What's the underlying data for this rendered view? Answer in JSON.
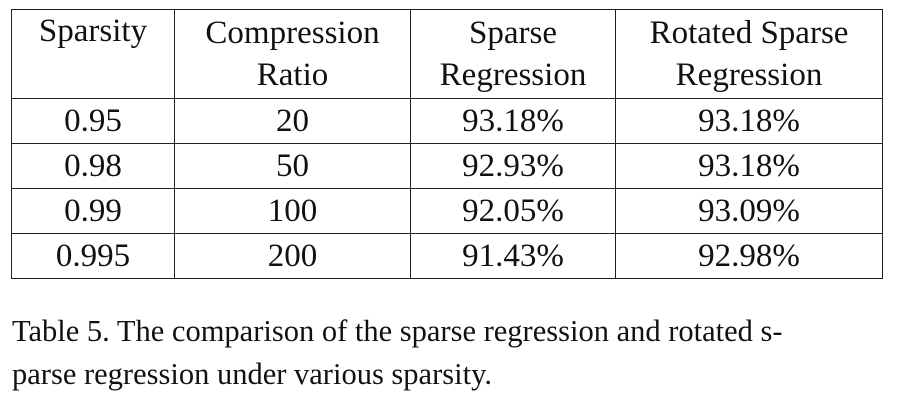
{
  "table": {
    "headers": [
      [
        "Sparsity"
      ],
      [
        "Compression",
        "Ratio"
      ],
      [
        "Sparse",
        "Regression"
      ],
      [
        "Rotated Sparse",
        "Regression"
      ]
    ],
    "rows": [
      [
        "0.95",
        "20",
        "93.18%",
        "93.18%"
      ],
      [
        "0.98",
        "50",
        "92.93%",
        "93.18%"
      ],
      [
        "0.99",
        "100",
        "92.05%",
        "93.09%"
      ],
      [
        "0.995",
        "200",
        "91.43%",
        "92.98%"
      ]
    ]
  },
  "caption": {
    "line1": "Table 5. The comparison of the sparse regression and rotated s-",
    "line2": "parse regression under various sparsity."
  }
}
